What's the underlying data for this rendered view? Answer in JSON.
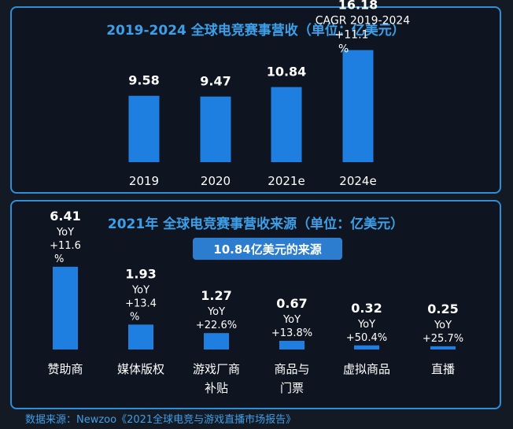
{
  "chart_data": [
    {
      "type": "bar",
      "title": "2019-2024 全球电竞赛事营收（单位：亿美元）",
      "categories": [
        "2019",
        "2020",
        "2021e",
        "2024e"
      ],
      "values": [
        9.58,
        9.47,
        10.84,
        16.18
      ],
      "value_labels": [
        "9.58",
        "9.47",
        "10.84",
        "16.18"
      ],
      "annotation": {
        "lines": [
          "CAGR 2019-2024",
          "+11.1",
          "%"
        ]
      },
      "color": "#1f7fe0"
    },
    {
      "type": "bar",
      "title": "2021年 全球电竞赛事营收来源（单位：亿美元）",
      "subtitle": "10.84亿美元的来源",
      "categories": [
        {
          "lines": [
            "赞助商"
          ]
        },
        {
          "lines": [
            "媒体版权"
          ]
        },
        {
          "lines": [
            "游戏厂商",
            "补贴"
          ]
        },
        {
          "lines": [
            "商品与",
            "门票"
          ]
        },
        {
          "lines": [
            "虚拟商品"
          ]
        },
        {
          "lines": [
            "直播"
          ]
        }
      ],
      "values": [
        6.41,
        1.93,
        1.27,
        0.67,
        0.32,
        0.25
      ],
      "value_labels": [
        "6.41",
        "1.93",
        "1.27",
        "0.67",
        "0.32",
        "0.25"
      ],
      "yoy_labels": [
        [
          "YoY",
          "+11.6",
          "%"
        ],
        [
          "YoY",
          "+13.4",
          "%"
        ],
        [
          "YoY",
          "+22.6%"
        ],
        [
          "YoY",
          "+13.8%"
        ],
        [
          "YoY",
          "+50.4%"
        ],
        [
          "YoY",
          "+25.7%"
        ]
      ],
      "color": "#1f7fe0"
    }
  ],
  "source": "数据来源：Newzoo《2021全球电竞与游戏直播市场报告》"
}
